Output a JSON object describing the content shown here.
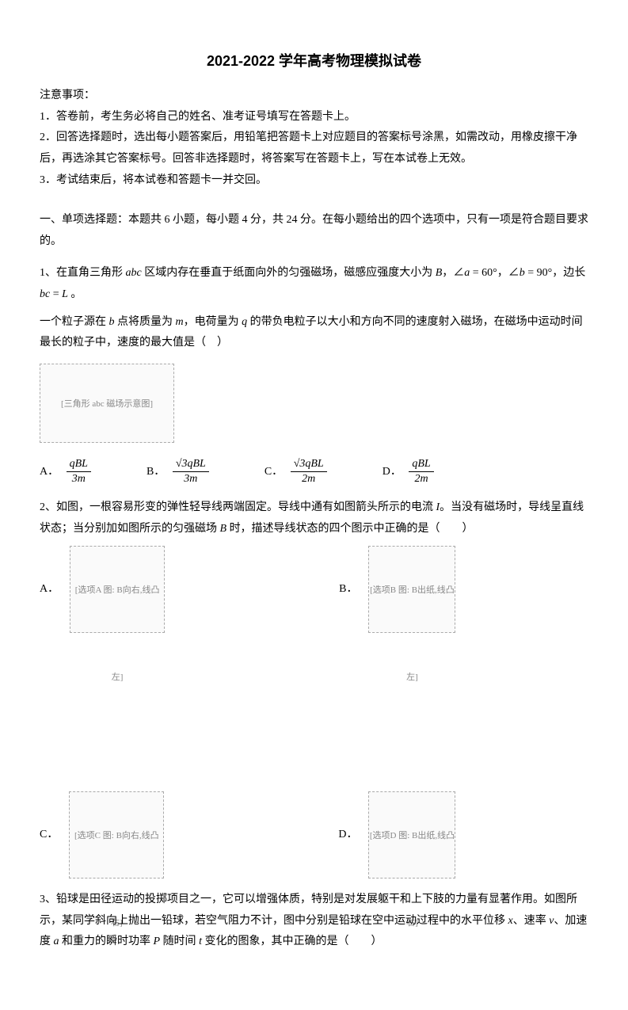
{
  "title": "2021-2022 学年高考物理模拟试卷",
  "notice": {
    "heading": "注意事项：",
    "items": [
      "1．答卷前，考生务必将自己的姓名、准考证号填写在答题卡上。",
      "2．回答选择题时，选出每小题答案后，用铅笔把答题卡上对应题目的答案标号涂黑，如需改动，用橡皮擦干净后，再选涂其它答案标号。回答非选择题时，将答案写在答题卡上，写在本试卷上无效。",
      "3．考试结束后，将本试卷和答题卡一并交回。"
    ]
  },
  "section1": {
    "heading": "一、单项选择题：本题共 6 小题，每小题 4 分，共 24 分。在每小题给出的四个选项中，只有一项是符合题目要求的。"
  },
  "q1": {
    "text_a": "1、在直角三角形 ",
    "abc": "abc",
    "text_b": " 区域内存在垂直于纸面向外的匀强磁场，磁感应强度大小为 ",
    "B": "B",
    "text_c": "，∠",
    "a": "a",
    "eq1": " = 60°，∠",
    "b": "b",
    "eq2": " = 90°，边长 ",
    "bc": "bc",
    "eqL": " = ",
    "L": "L",
    "text_d": " 。",
    "para2_a": "一个粒子源在 ",
    "para2_b": " 点将质量为 ",
    "m": "m",
    "para2_c": "，电荷量为 ",
    "q": "q",
    "para2_d": " 的带负电粒子以大小和方向不同的速度射入磁场，在磁场中运动时间最长的粒子中，速度的最大值是（　）",
    "figure_label": "[三角形 abc 磁场示意图]",
    "options": {
      "A": {
        "label": "A．",
        "num": "qBL",
        "den": "3m"
      },
      "B": {
        "label": "B．",
        "num": "√3qBL",
        "den": "3m"
      },
      "C": {
        "label": "C．",
        "num": "√3qBL",
        "den": "2m"
      },
      "D": {
        "label": "D．",
        "num": "qBL",
        "den": "2m"
      }
    }
  },
  "q2": {
    "text_a": "2、如图，一根容易形变的弹性轻导线两端固定。导线中通有如图箭头所示的电流 ",
    "I": "I",
    "text_b": "。当没有磁场时，导线呈直线状态；当分别加如图所示的匀强磁场 ",
    "B": "B",
    "text_c": " 时，描述导线状态的四个图示中正确的是（　　）",
    "options": {
      "A": {
        "label": "A．",
        "fig": "[选项A 图: B向右,线凸左]"
      },
      "B": {
        "label": "B．",
        "fig": "[选项B 图: B出纸,线凸左]"
      },
      "C": {
        "label": "C．",
        "fig": "[选项C 图: B向右,线凸右]"
      },
      "D": {
        "label": "D．",
        "fig": "[选项D 图: B出纸,线凸右]"
      }
    }
  },
  "q3": {
    "text_a": "3、铅球是田径运动的投掷项目之一，它可以增强体质，特别是对发展躯干和上下肢的力量有显著作用。如图所示，某同学斜向上抛出一铅球，若空气阻力不计，图中分别是铅球在空中运动过程中的水平位移 ",
    "x": "x",
    "text_b": "、速率 ",
    "v": "v",
    "text_c": "、加速度 ",
    "a": "a",
    "text_d": " 和重力的瞬时功率 ",
    "P": "P",
    "text_e": " 随时间 ",
    "t": "t",
    "text_f": " 变化的图象，其中正确的是（　　）"
  }
}
